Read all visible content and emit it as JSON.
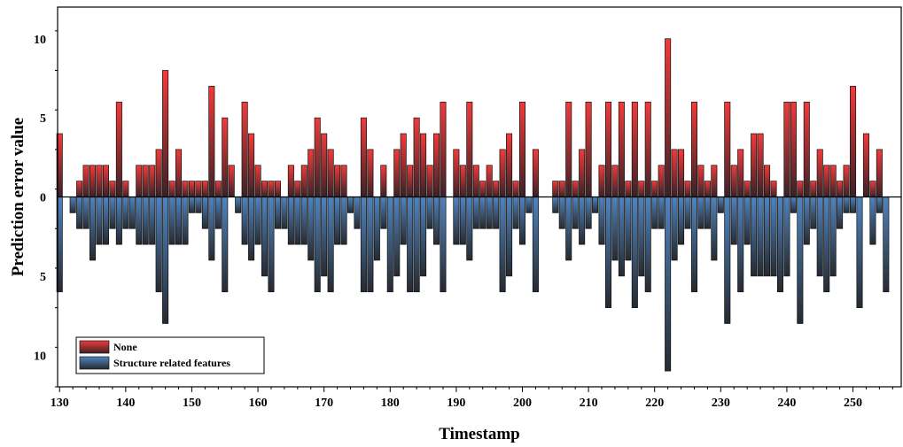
{
  "chart_data": {
    "type": "bar",
    "xlabel": "Timestamp",
    "ylabel": "Prediction error value",
    "xlim": [
      129.7,
      257.3
    ],
    "ylim": [
      -12,
      12
    ],
    "x_ticks": [
      130,
      140,
      150,
      160,
      170,
      180,
      190,
      200,
      210,
      220,
      230,
      240,
      250
    ],
    "y_ticks": [
      {
        "value": 10,
        "label": "10"
      },
      {
        "value": 5,
        "label": "5"
      },
      {
        "value": 0,
        "label": "0"
      },
      {
        "value": -5,
        "label": "5"
      },
      {
        "value": -10,
        "label": "10"
      }
    ],
    "legend_position": "bottom-left",
    "grid": false,
    "x": [
      130,
      131,
      132,
      133,
      134,
      135,
      136,
      137,
      138,
      139,
      140,
      141,
      142,
      143,
      144,
      145,
      146,
      147,
      148,
      149,
      150,
      151,
      152,
      153,
      154,
      155,
      156,
      157,
      158,
      159,
      160,
      161,
      162,
      163,
      164,
      165,
      166,
      167,
      168,
      169,
      170,
      171,
      172,
      173,
      174,
      175,
      176,
      177,
      178,
      179,
      180,
      181,
      182,
      183,
      184,
      185,
      186,
      187,
      188,
      189,
      190,
      191,
      192,
      193,
      194,
      195,
      196,
      197,
      198,
      199,
      200,
      201,
      202,
      203,
      204,
      205,
      206,
      207,
      208,
      209,
      210,
      211,
      212,
      213,
      214,
      215,
      216,
      217,
      218,
      219,
      220,
      221,
      222,
      223,
      224,
      225,
      226,
      227,
      228,
      229,
      230,
      231,
      232,
      233,
      234,
      235,
      236,
      237,
      238,
      239,
      240,
      241,
      242,
      243,
      244,
      245,
      246,
      247,
      248,
      249,
      250,
      251,
      252,
      253,
      254,
      255,
      256,
      257
    ],
    "series": [
      {
        "name": "None",
        "color": "#e8343a",
        "direction": "up",
        "values": [
          4,
          0,
          0,
          1,
          2,
          2,
          2,
          2,
          1,
          6,
          1,
          0,
          2,
          2,
          2,
          3,
          8,
          1,
          3,
          1,
          1,
          1,
          1,
          7,
          1,
          5,
          2,
          0,
          6,
          4,
          2,
          1,
          1,
          1,
          0,
          2,
          1,
          2,
          3,
          5,
          4,
          3,
          2,
          2,
          0,
          0,
          5,
          3,
          0,
          2,
          0,
          3,
          4,
          2,
          5,
          4,
          2,
          4,
          6,
          0,
          3,
          2,
          6,
          2,
          1,
          2,
          1,
          3,
          4,
          1,
          6,
          0,
          3,
          0,
          0,
          1,
          1,
          6,
          1,
          3,
          6,
          0,
          2,
          6,
          2,
          6,
          1,
          6,
          1,
          6,
          1,
          2,
          10,
          3,
          3,
          1,
          6,
          2,
          1,
          2,
          0,
          6,
          2,
          3,
          1,
          4,
          4,
          2,
          1,
          0,
          6,
          6,
          1,
          6,
          1,
          3,
          2,
          2,
          1,
          2,
          7,
          0,
          4,
          1,
          3,
          0,
          0,
          0
        ]
      },
      {
        "name": "Structure related features",
        "color": "#4a78ad",
        "direction": "down",
        "values": [
          6,
          0,
          1,
          2,
          2,
          4,
          3,
          3,
          2,
          3,
          2,
          2,
          3,
          3,
          3,
          6,
          8,
          3,
          3,
          3,
          1,
          1,
          2,
          4,
          2,
          6,
          0,
          1,
          3,
          4,
          3,
          5,
          6,
          2,
          2,
          3,
          3,
          3,
          4,
          6,
          5,
          6,
          3,
          3,
          1,
          2,
          6,
          6,
          4,
          2,
          6,
          5,
          3,
          6,
          6,
          5,
          2,
          3,
          6,
          0,
          3,
          3,
          4,
          2,
          2,
          2,
          2,
          6,
          5,
          2,
          3,
          1,
          6,
          0,
          0,
          1,
          2,
          4,
          2,
          3,
          2,
          1,
          3,
          7,
          4,
          5,
          4,
          7,
          5,
          6,
          2,
          2,
          11,
          4,
          3,
          2,
          6,
          2,
          2,
          4,
          1,
          8,
          3,
          6,
          3,
          5,
          5,
          5,
          5,
          6,
          5,
          1,
          8,
          3,
          2,
          5,
          6,
          5,
          2,
          1,
          1,
          7,
          0,
          3,
          1,
          6,
          0,
          0
        ]
      }
    ]
  }
}
